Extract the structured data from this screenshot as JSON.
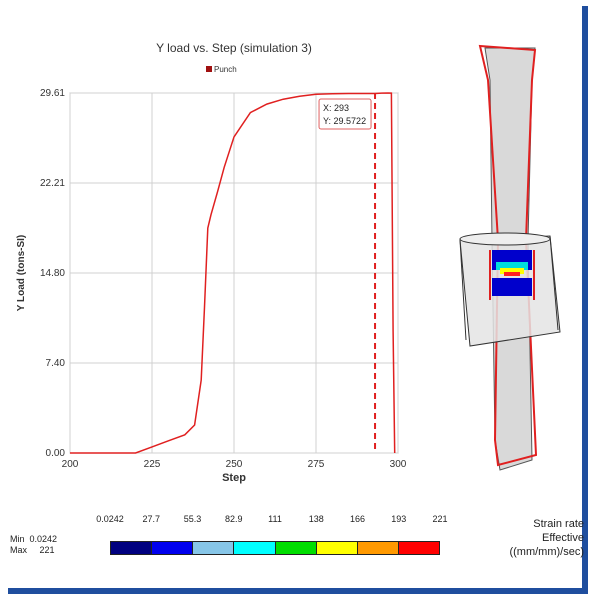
{
  "chart_data": {
    "type": "line",
    "title": "Y load vs. Step (simulation 3)",
    "xlabel": "Step",
    "ylabel": "Y Load (tons-SI)",
    "xlim": [
      200,
      300
    ],
    "ylim": [
      0,
      29.61
    ],
    "x_ticks": [
      "200",
      "225",
      "250",
      "275",
      "300"
    ],
    "y_ticks": [
      "0.00",
      "7.40",
      "14.80",
      "22.21",
      "29.61"
    ],
    "grid": true,
    "legend": "top-center",
    "series": [
      {
        "name": "Punch",
        "color": "#e02020",
        "x": [
          200,
          220,
          225,
          230,
          235,
          238,
          240,
          241,
          242,
          243,
          245,
          247,
          250,
          255,
          260,
          265,
          270,
          275,
          280,
          285,
          290,
          293,
          295,
          297,
          298,
          298.5,
          299
        ],
        "y": [
          0,
          0,
          0.5,
          1.0,
          1.5,
          2.3,
          6.0,
          12.0,
          18.5,
          19.6,
          21.5,
          23.5,
          26.0,
          28.0,
          28.7,
          29.1,
          29.35,
          29.5,
          29.55,
          29.57,
          29.57,
          29.57,
          29.6,
          29.61,
          29.6,
          10,
          0
        ]
      }
    ],
    "cursor": {
      "x": 293,
      "label_x": "X: 293",
      "label_y": "Y: 29.5722"
    }
  },
  "color_scale": {
    "title_lines": [
      "Strain rate",
      "Effective",
      "((mm/mm)/sec)"
    ],
    "values": [
      "0.0242",
      "27.7",
      "55.3",
      "82.9",
      "111",
      "138",
      "166",
      "193",
      "221"
    ],
    "min_label": "Min  0.0242",
    "max_label": "Max     221",
    "colors": [
      "#000080",
      "#0000ee",
      "#87c6e8",
      "#00ffff",
      "#00dd00",
      "#ffff00",
      "#ff9900",
      "#ff0000"
    ]
  }
}
